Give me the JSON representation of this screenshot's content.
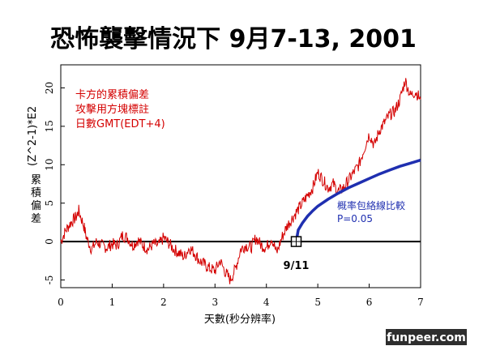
{
  "chart_data": {
    "type": "line",
    "title": "恐怖襲擊情況下 9月7-13, 2001",
    "xlabel": "天數(秒分辨率)",
    "ylabel": [
      "累",
      "積",
      "偏",
      "差",
      "(Z^2-1)*E2"
    ],
    "xlim": [
      0,
      7
    ],
    "ylim": [
      -6,
      23
    ],
    "x_ticks": [
      "0",
      "1",
      "2",
      "3",
      "4",
      "5",
      "6",
      "7"
    ],
    "y_ticks": [
      "-5",
      "0",
      "5",
      "10",
      "15",
      "20"
    ],
    "series": [
      {
        "name": "卡方的累積偏差",
        "color": "#d40000",
        "x": [
          0,
          0.1,
          0.2,
          0.3,
          0.35,
          0.45,
          0.5,
          0.6,
          0.7,
          0.8,
          0.9,
          1.0,
          1.1,
          1.2,
          1.3,
          1.4,
          1.5,
          1.6,
          1.7,
          1.8,
          1.9,
          2.0,
          2.1,
          2.2,
          2.3,
          2.4,
          2.5,
          2.6,
          2.7,
          2.8,
          2.9,
          3.0,
          3.1,
          3.2,
          3.3,
          3.4,
          3.5,
          3.6,
          3.7,
          3.8,
          3.9,
          4.0,
          4.1,
          4.2,
          4.3,
          4.4,
          4.5,
          4.6,
          4.7,
          4.8,
          4.9,
          5.0,
          5.1,
          5.2,
          5.3,
          5.4,
          5.5,
          5.6,
          5.7,
          5.8,
          5.9,
          6.0,
          6.1,
          6.2,
          6.3,
          6.4,
          6.5,
          6.6,
          6.7,
          6.8,
          6.9,
          7.0
        ],
        "y": [
          0,
          1.5,
          2.5,
          3.2,
          4.0,
          2.0,
          0.5,
          -1.0,
          0,
          -0.5,
          -0.8,
          -0.3,
          -0.5,
          0.8,
          0.5,
          -0.5,
          0.2,
          -0.5,
          -1.0,
          -0.3,
          -0.5,
          0.5,
          -0.2,
          -1.0,
          -1.5,
          -2.0,
          -0.8,
          -1.5,
          -2.5,
          -3.0,
          -3.5,
          -3.8,
          -2.5,
          -4.0,
          -5.0,
          -3.5,
          -1.0,
          -0.5,
          -0.8,
          0.5,
          -0.5,
          -0.8,
          0.5,
          -1.5,
          0.5,
          2.0,
          3.0,
          4.0,
          5.0,
          6.0,
          7.0,
          9.0,
          8.0,
          7.0,
          7.5,
          6.5,
          7.0,
          8.0,
          9.0,
          10.0,
          12.0,
          14.0,
          12.5,
          14.5,
          15.5,
          16.5,
          17.0,
          18.5,
          21.0,
          19.0,
          19.5,
          18.5
        ]
      },
      {
        "name": "概率包絡線比較 P=0.05",
        "color": "#1f2fb0",
        "x": [
          4.58,
          4.62,
          4.7,
          4.8,
          4.9,
          5.0,
          5.2,
          5.4,
          5.6,
          5.8,
          6.0,
          6.2,
          6.4,
          6.6,
          6.8,
          7.0
        ],
        "y": [
          0,
          1.5,
          2.4,
          3.3,
          4.0,
          4.6,
          5.5,
          6.3,
          7.0,
          7.6,
          8.2,
          8.8,
          9.3,
          9.8,
          10.2,
          10.6
        ]
      }
    ],
    "event_marker": {
      "x": 4.58,
      "y": 0,
      "label": "9/11"
    },
    "annotations": {
      "red_lines": [
        "卡方的累積偏差",
        "攻擊用方塊標註",
        "日數GMT(EDT+4)"
      ],
      "blue_lines": [
        "概率包絡線比較",
        "P=0.05"
      ]
    },
    "watermark": "funpeer.com",
    "grid": false,
    "legend_placement": "none"
  }
}
